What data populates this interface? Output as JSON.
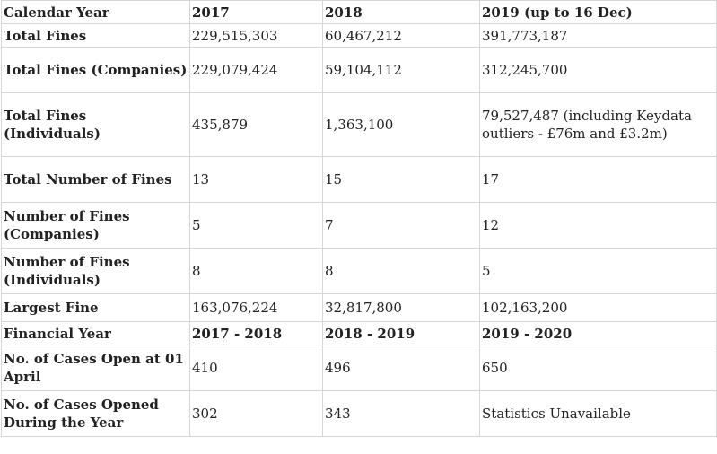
{
  "table": {
    "calendar_header": {
      "label": "Calendar Year",
      "c1": "2017",
      "c2": "2018",
      "c3": "2019 (up to 16 Dec)"
    },
    "total_fines": {
      "label": "Total Fines",
      "c1": "229,515,303",
      "c2": "60,467,212",
      "c3": "391,773,187"
    },
    "total_fines_companies": {
      "label": "Total Fines (Companies)",
      "c1": "229,079,424",
      "c2": "59,104,112",
      "c3": "312,245,700"
    },
    "total_fines_individuals": {
      "label": "Total Fines (Individuals)",
      "c1": "435,879",
      "c2": "1,363,100",
      "c3": "79,527,487 (including Keydata outliers - £76m and £3.2m)"
    },
    "total_number_of_fines": {
      "label": "Total Number of Fines",
      "c1": "13",
      "c2": "15",
      "c3": "17"
    },
    "number_of_fines_companies": {
      "label": "Number of Fines (Companies)",
      "c1": "5",
      "c2": "7",
      "c3": "12"
    },
    "number_of_fines_individuals": {
      "label": "Number of Fines (Individuals)",
      "c1": "8",
      "c2": "8",
      "c3": "5"
    },
    "largest_fine": {
      "label": "Largest Fine",
      "c1": "163,076,224",
      "c2": "32,817,800",
      "c3": "102,163,200"
    },
    "financial_header": {
      "label": "Financial Year",
      "c1": "2017 - 2018",
      "c2": "2018 - 2019",
      "c3": "2019 - 2020"
    },
    "cases_open": {
      "label": "No. of Cases Open at 01 April",
      "c1": "410",
      "c2": "496",
      "c3": "650"
    },
    "cases_opened": {
      "label": "No. of Cases Opened During the Year",
      "c1": "302",
      "c2": "343",
      "c3": "Statistics Unavailable"
    }
  }
}
